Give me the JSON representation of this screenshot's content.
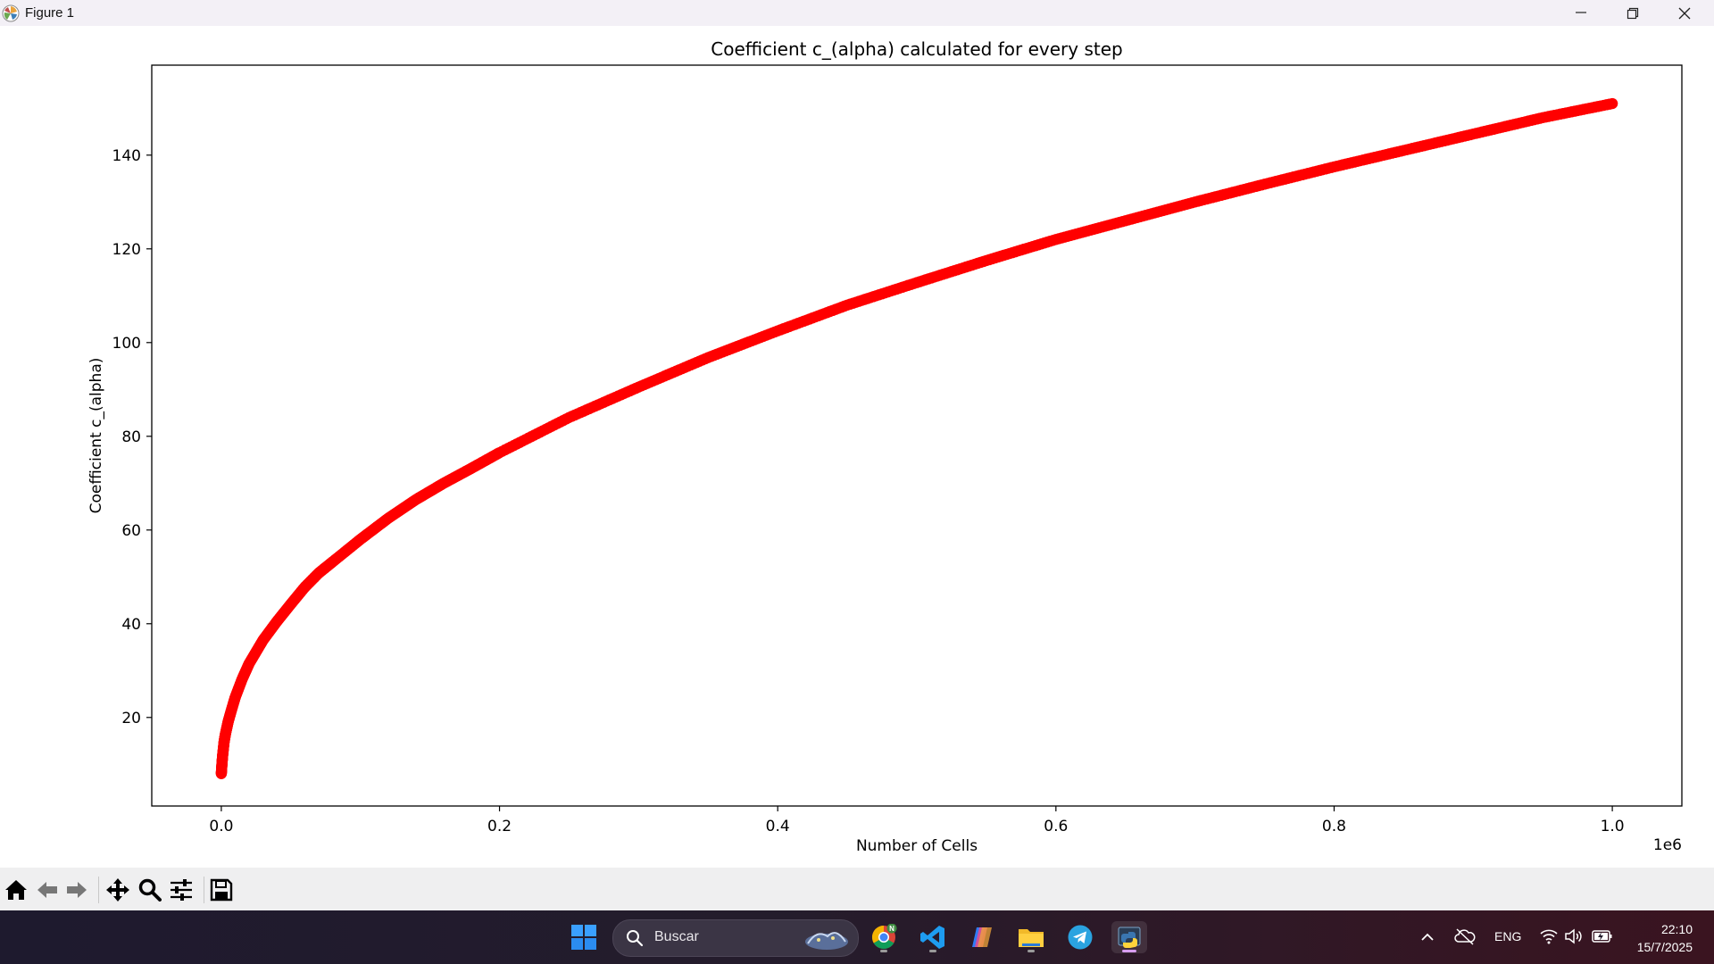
{
  "window": {
    "title": "Figure 1",
    "app_icon": "matplotlib-icon",
    "controls": [
      "minimize-icon",
      "restore-icon",
      "close-icon"
    ]
  },
  "chart_data": {
    "type": "scatter",
    "title": "Coefficient c_(alpha) calculated for every step",
    "xlabel": "Number of Cells",
    "ylabel": "Coefficient c_(alpha)",
    "x_offset_text": "1e6",
    "xlim": [
      -50000,
      1050000
    ],
    "ylim": [
      1.1,
      159.2
    ],
    "xticks": [
      0.0,
      0.2,
      0.4,
      0.6,
      0.8,
      1.0
    ],
    "xtick_labels": [
      "0.0",
      "0.2",
      "0.4",
      "0.6",
      "0.8",
      "1.0"
    ],
    "yticks": [
      20,
      40,
      60,
      80,
      100,
      120,
      140
    ],
    "ytick_labels": [
      "20",
      "40",
      "60",
      "80",
      "100",
      "120",
      "140"
    ],
    "grid": false,
    "marker_color": "#ff0000",
    "series": [
      {
        "x": [
          0,
          500,
          1000,
          2000,
          3000,
          5000,
          7500,
          10000,
          15000,
          20000,
          30000,
          40000,
          50000,
          60000,
          70000,
          80000,
          100000,
          120000,
          140000,
          160000,
          180000,
          200000,
          250000,
          300000,
          350000,
          400000,
          450000,
          500000,
          550000,
          600000,
          650000,
          700000,
          750000,
          800000,
          850000,
          900000,
          950000,
          1000000
        ],
        "y": [
          8.0,
          10.2,
          12.0,
          14.8,
          16.5,
          19.2,
          21.8,
          24.3,
          28.2,
          31.5,
          36.5,
          40.5,
          44.2,
          47.8,
          50.8,
          53.2,
          58.0,
          62.5,
          66.5,
          70.0,
          73.2,
          76.5,
          84.0,
          90.5,
          96.8,
          102.5,
          108.0,
          112.8,
          117.5,
          122.0,
          126.0,
          130.0,
          133.8,
          137.5,
          141.0,
          144.5,
          148.0,
          151.0
        ]
      }
    ]
  },
  "toolbar": {
    "tools": [
      "home-icon",
      "back-icon",
      "forward-icon",
      "pan-icon",
      "zoom-icon",
      "configure-subplots-icon",
      "save-icon"
    ]
  },
  "taskbar": {
    "search_label": "Buscar",
    "apps": [
      "windows-start-icon",
      "chrome-icon",
      "vscode-icon",
      "copilot-icon",
      "file-explorer-icon",
      "telegram-icon",
      "python-icon"
    ],
    "chrome_badge": "N",
    "language": "ENG",
    "time": "22:10",
    "date": "15/7/2025"
  }
}
